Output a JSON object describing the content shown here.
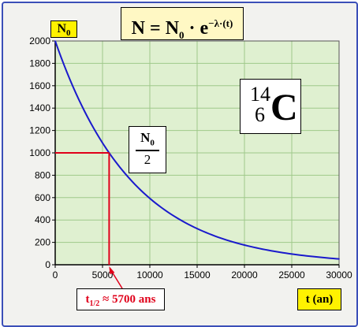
{
  "formula": {
    "lhs": "N",
    "n_symbol": "N",
    "n_sub": "0",
    "e": "e",
    "exponent": "−λ·(t)"
  },
  "ylabel": {
    "main": "N",
    "sub": "0"
  },
  "xlabel": "t (an)",
  "isotope": {
    "mass": "14",
    "atomic": "6",
    "symbol": "C"
  },
  "half_label": {
    "num_main": "N",
    "num_sub": "0",
    "den": "2"
  },
  "half_life_label": {
    "main": "t",
    "sub": "1/2",
    "rest": " ≈ 5700 ans"
  },
  "colors": {
    "curve": "#1a1acc",
    "plot_bg": "#dff0d0",
    "grid": "#9fc98a",
    "marker": "#e0001a",
    "frame": "#3b4fb8"
  },
  "chart_data": {
    "type": "line",
    "title": "N = N0 · e^(−λ·(t))",
    "xlabel": "t (an)",
    "ylabel": "N0",
    "xlim": [
      0,
      30000
    ],
    "ylim": [
      0,
      2000
    ],
    "xticks": [
      0,
      5000,
      10000,
      15000,
      20000,
      25000,
      30000
    ],
    "yticks": [
      0,
      200,
      400,
      600,
      800,
      1000,
      1200,
      1400,
      1600,
      1800,
      2000
    ],
    "grid": true,
    "series": [
      {
        "x": [
          0,
          2500,
          5000,
          5700,
          7500,
          10000,
          12500,
          15000,
          17500,
          20000,
          22500,
          25000,
          27500,
          30000
        ],
        "y": [
          2000,
          1476,
          1089,
          1000,
          804,
          593,
          438,
          323,
          238,
          176,
          130,
          96,
          71,
          52
        ]
      }
    ],
    "annotations": [
      {
        "x": 5700,
        "y": 1000,
        "text": "N0/2"
      },
      {
        "x": 5700,
        "text": "t1/2 ≈ 5700 ans"
      }
    ]
  }
}
